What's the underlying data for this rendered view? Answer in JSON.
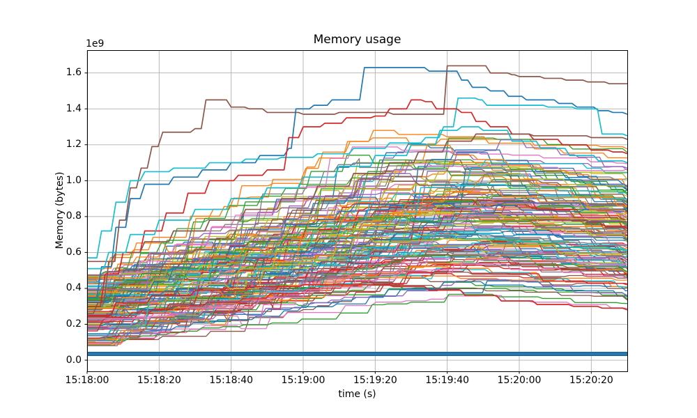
{
  "figure": {
    "background": "#ffffff",
    "text_color": "#000000",
    "grid_color": "#b0b0b0",
    "spine_color": "#000000"
  },
  "chart_data": {
    "type": "line",
    "title": "Memory usage",
    "xlabel": "time (s)",
    "ylabel": "Memory (bytes)",
    "y_offset_text": "1e9",
    "grid": true,
    "legend": false,
    "x_axis_kind": "time-of-day",
    "x_ticks": [
      {
        "label": "15:18:00",
        "t": 0
      },
      {
        "label": "15:18:20",
        "t": 20
      },
      {
        "label": "15:18:40",
        "t": 40
      },
      {
        "label": "15:19:00",
        "t": 60
      },
      {
        "label": "15:19:20",
        "t": 80
      },
      {
        "label": "15:19:40",
        "t": 100
      },
      {
        "label": "15:20:00",
        "t": 120
      },
      {
        "label": "15:20:20",
        "t": 140
      }
    ],
    "y_ticks": [
      0.0,
      0.2,
      0.4,
      0.6,
      0.8,
      1.0,
      1.2,
      1.4,
      1.6
    ],
    "xlim_seconds": [
      0,
      150
    ],
    "ylim_1e9": [
      -0.062,
      1.727
    ],
    "palette": [
      "#1f77b4",
      "#ff7f0e",
      "#2ca02c",
      "#d62728",
      "#9467bd",
      "#8c564b",
      "#e377c2",
      "#7f7f7f",
      "#bcbd22",
      "#17becf"
    ],
    "baseline_series": {
      "description": "thick flat line of constant memory usage",
      "value_1e9": 0.035,
      "color": "#2478ae",
      "edge_color": "#1a608c",
      "linewidth": 5
    },
    "highlight_series": [
      {
        "name": "brown-top",
        "color": "#8c564b",
        "points": [
          [
            0,
            0.26
          ],
          [
            3,
            0.32
          ],
          [
            6,
            0.55
          ],
          [
            9,
            0.78
          ],
          [
            12,
            0.96
          ],
          [
            15,
            1.07
          ],
          [
            18,
            1.19
          ],
          [
            21,
            1.27
          ],
          [
            30,
            1.29
          ],
          [
            33,
            1.45
          ],
          [
            38,
            1.45
          ],
          [
            40,
            1.41
          ],
          [
            45,
            1.4
          ],
          [
            50,
            1.38
          ],
          [
            60,
            1.37
          ],
          [
            70,
            1.38
          ],
          [
            85,
            1.37
          ],
          [
            99,
            1.37
          ],
          [
            100,
            1.64
          ],
          [
            110,
            1.64
          ],
          [
            112,
            1.6
          ],
          [
            118,
            1.59
          ],
          [
            120,
            1.58
          ],
          [
            127,
            1.57
          ],
          [
            133,
            1.56
          ],
          [
            139,
            1.55
          ],
          [
            145,
            1.54
          ],
          [
            150,
            1.54
          ]
        ]
      },
      {
        "name": "blue-top",
        "color": "#1f77b4",
        "points": [
          [
            0,
            0.35
          ],
          [
            4,
            0.52
          ],
          [
            8,
            0.74
          ],
          [
            12,
            0.9
          ],
          [
            16,
            0.98
          ],
          [
            24,
            1.02
          ],
          [
            32,
            1.06
          ],
          [
            40,
            1.1
          ],
          [
            48,
            1.14
          ],
          [
            56,
            1.18
          ],
          [
            58,
            1.4
          ],
          [
            63,
            1.42
          ],
          [
            68,
            1.45
          ],
          [
            75,
            1.45
          ],
          [
            77,
            1.63
          ],
          [
            92,
            1.63
          ],
          [
            95,
            1.61
          ],
          [
            100,
            1.61
          ],
          [
            104,
            1.56
          ],
          [
            107,
            1.52
          ],
          [
            112,
            1.5
          ],
          [
            117,
            1.47
          ],
          [
            122,
            1.45
          ],
          [
            131,
            1.43
          ],
          [
            136,
            1.41
          ],
          [
            142,
            1.39
          ],
          [
            146,
            1.38
          ],
          [
            150,
            1.37
          ]
        ]
      },
      {
        "name": "cyan-top",
        "color": "#17becf",
        "points": [
          [
            0,
            0.57
          ],
          [
            4,
            0.72
          ],
          [
            8,
            0.88
          ],
          [
            12,
            1.0
          ],
          [
            16,
            1.05
          ],
          [
            24,
            1.07
          ],
          [
            34,
            1.1
          ],
          [
            44,
            1.12
          ],
          [
            54,
            1.13
          ],
          [
            64,
            1.15
          ],
          [
            74,
            1.18
          ],
          [
            84,
            1.21
          ],
          [
            94,
            1.24
          ],
          [
            99,
            1.3
          ],
          [
            103,
            1.46
          ],
          [
            109,
            1.45
          ],
          [
            111,
            1.42
          ],
          [
            120,
            1.42
          ],
          [
            128,
            1.41
          ],
          [
            136,
            1.4
          ],
          [
            141,
            1.4
          ],
          [
            143,
            1.26
          ],
          [
            150,
            1.25
          ]
        ]
      },
      {
        "name": "red-top",
        "color": "#d62728",
        "points": [
          [
            0,
            0.3
          ],
          [
            5,
            0.48
          ],
          [
            10,
            0.6
          ],
          [
            16,
            0.72
          ],
          [
            22,
            0.82
          ],
          [
            28,
            0.93
          ],
          [
            34,
            1.0
          ],
          [
            42,
            1.03
          ],
          [
            50,
            1.06
          ],
          [
            56,
            1.24
          ],
          [
            60,
            1.3
          ],
          [
            66,
            1.32
          ],
          [
            72,
            1.35
          ],
          [
            80,
            1.36
          ],
          [
            84,
            1.4
          ],
          [
            90,
            1.45
          ],
          [
            94,
            1.44
          ],
          [
            97,
            1.4
          ],
          [
            104,
            1.38
          ],
          [
            108,
            1.33
          ],
          [
            112,
            1.3
          ],
          [
            118,
            1.26
          ],
          [
            124,
            1.23
          ],
          [
            132,
            1.2
          ],
          [
            140,
            1.17
          ],
          [
            146,
            1.16
          ],
          [
            150,
            1.15
          ]
        ]
      },
      {
        "name": "brown-mid",
        "color": "#8c564b",
        "points": [
          [
            0,
            0.55
          ],
          [
            8,
            0.6
          ],
          [
            16,
            0.66
          ],
          [
            24,
            0.72
          ],
          [
            34,
            0.78
          ],
          [
            44,
            0.84
          ],
          [
            54,
            0.9
          ],
          [
            64,
            0.97
          ],
          [
            74,
            1.04
          ],
          [
            84,
            1.1
          ],
          [
            92,
            1.16
          ],
          [
            100,
            1.22
          ],
          [
            108,
            1.26
          ],
          [
            116,
            1.26
          ],
          [
            124,
            1.25
          ],
          [
            132,
            1.25
          ],
          [
            140,
            1.24
          ],
          [
            150,
            1.23
          ]
        ]
      },
      {
        "name": "cyan-mid",
        "color": "#17becf",
        "points": [
          [
            0,
            0.51
          ],
          [
            6,
            0.6
          ],
          [
            12,
            0.7
          ],
          [
            20,
            0.78
          ],
          [
            30,
            0.84
          ],
          [
            40,
            0.9
          ],
          [
            50,
            0.96
          ],
          [
            60,
            1.02
          ],
          [
            70,
            1.08
          ],
          [
            80,
            1.14
          ],
          [
            90,
            1.2
          ],
          [
            98,
            1.28
          ],
          [
            104,
            1.3
          ],
          [
            110,
            1.28
          ],
          [
            118,
            1.22
          ],
          [
            126,
            1.18
          ],
          [
            134,
            1.14
          ],
          [
            142,
            1.11
          ],
          [
            150,
            1.1
          ]
        ]
      },
      {
        "name": "red-low",
        "color": "#d62728",
        "points": [
          [
            0,
            0.25
          ],
          [
            8,
            0.32
          ],
          [
            18,
            0.36
          ],
          [
            30,
            0.39
          ],
          [
            45,
            0.41
          ],
          [
            60,
            0.42
          ],
          [
            75,
            0.42
          ],
          [
            85,
            0.41
          ],
          [
            95,
            0.39
          ],
          [
            105,
            0.36
          ],
          [
            115,
            0.33
          ],
          [
            125,
            0.31
          ],
          [
            135,
            0.3
          ],
          [
            143,
            0.29
          ],
          [
            150,
            0.28
          ]
        ]
      }
    ],
    "bulk_series": {
      "description": "dense band of ~150 per-process memory traces that rise in steps from 0.1-0.5e9, peak around 15:19:30-15:19:55 between 0.3e9 and 1.28e9, then slowly decline",
      "count": 152,
      "seed": 42,
      "start_range_1e9": [
        0.08,
        0.48
      ],
      "rise_range_1e9": [
        0.22,
        0.85
      ],
      "peak_cap_1e9": 1.28,
      "peak_time_range_s": [
        72,
        118
      ],
      "end_fraction_range": [
        0.76,
        0.97
      ],
      "linewidth": 1.35
    }
  }
}
